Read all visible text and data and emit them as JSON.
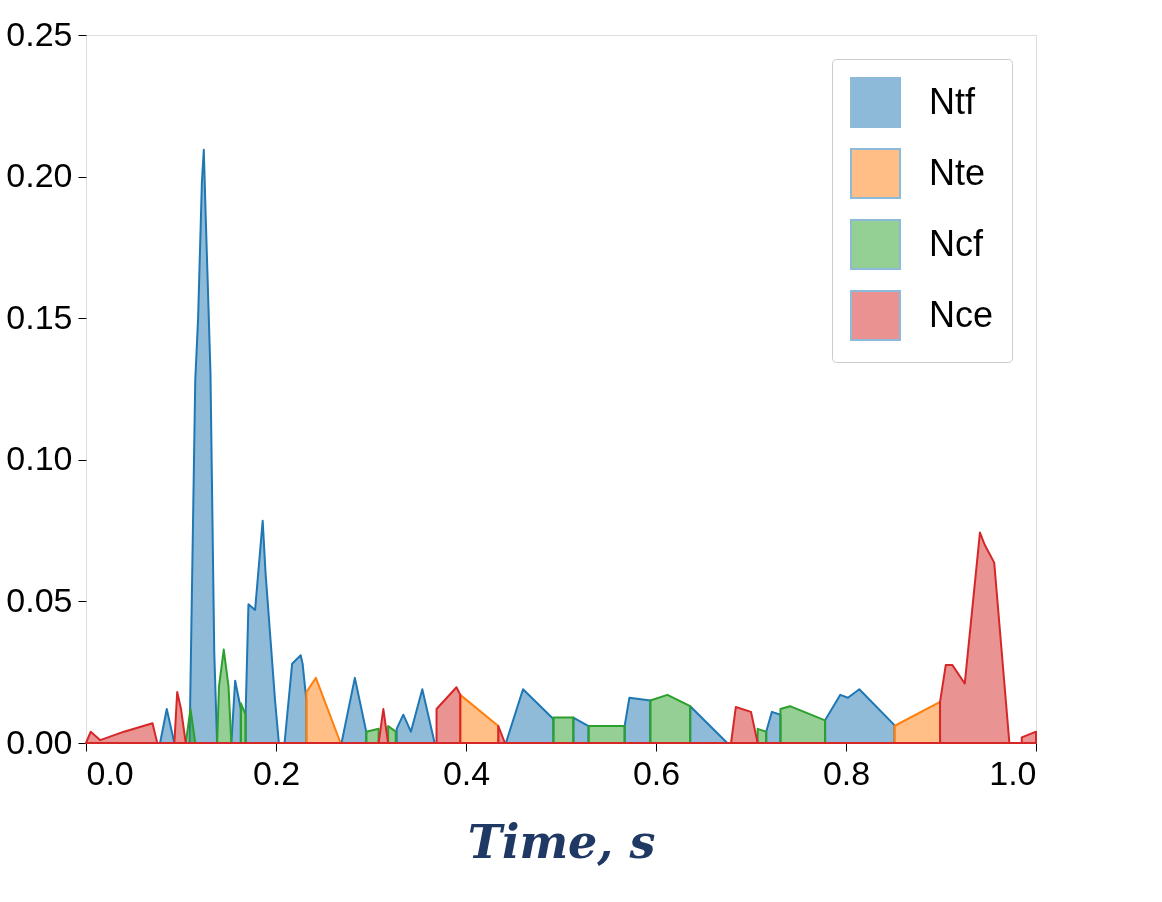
{
  "chart_data": {
    "type": "area",
    "xlabel": "Time, s",
    "xlim": [
      0,
      1
    ],
    "xticks": [
      {
        "value": 0,
        "label": "0.0"
      },
      {
        "value": 0.2,
        "label": "0.2"
      },
      {
        "value": 0.4,
        "label": "0.4"
      },
      {
        "value": 0.6,
        "label": "0.6"
      },
      {
        "value": 0.8,
        "label": "0.8"
      },
      {
        "value": 1,
        "label": "1.0"
      }
    ],
    "ylim": [
      0,
      0.25
    ],
    "yticks": [
      {
        "value": 0,
        "label": "0.00"
      },
      {
        "value": 0.05,
        "label": "0.05"
      },
      {
        "value": 0.1,
        "label": "0.10"
      },
      {
        "value": 0.15,
        "label": "0.15"
      },
      {
        "value": 0.2,
        "label": "0.20"
      },
      {
        "value": 0.25,
        "label": "0.25"
      }
    ],
    "grid": false,
    "legend": "top right",
    "series": [
      {
        "name": "Ntf",
        "color": "#1f77b4",
        "x": [
          0.078,
          0.085,
          0.093,
          0.109,
          0.115,
          0.118,
          0.122,
          0.124,
          0.126,
          0.131,
          0.135,
          0.138,
          0.153,
          0.157,
          0.163,
          0.163,
          0.168,
          0.168,
          0.171,
          0.178,
          0.186,
          0.189,
          0.199,
          0.203,
          0.209,
          0.217,
          0.226,
          0.228,
          0.232,
          0.232,
          0.269,
          0.283,
          0.295,
          0.295,
          0.327,
          0.327,
          0.334,
          0.342,
          0.354,
          0.367,
          0.442,
          0.46,
          0.492,
          0.492,
          0.513,
          0.513,
          0.529,
          0.529,
          0.567,
          0.567,
          0.572,
          0.594,
          0.594,
          0.636,
          0.636,
          0.675,
          0.716,
          0.716,
          0.722,
          0.731,
          0.731,
          0.778,
          0.778,
          0.794,
          0.802,
          0.814,
          0.851,
          0.851
        ],
        "values": [
          0,
          0.012,
          0,
          0,
          0.128,
          0.15,
          0.198,
          0.2095,
          0.186,
          0.131,
          0.032,
          0,
          0,
          0.022,
          0.012,
          0,
          0,
          0.01,
          0.049,
          0.047,
          0.0785,
          0.06,
          0.015,
          0,
          0,
          0.028,
          0.031,
          0.028,
          0.015,
          0,
          0,
          0.023,
          0.004,
          0,
          0,
          0.005,
          0.01,
          0.004,
          0.019,
          0,
          0,
          0.019,
          0.0085,
          0,
          0,
          0.009,
          0.006,
          0,
          0,
          0.006,
          0.016,
          0.015,
          0,
          0,
          0.013,
          0,
          0,
          0.004,
          0.011,
          0.01,
          0,
          0,
          0.008,
          0.017,
          0.016,
          0.019,
          0.0063,
          0
        ]
      },
      {
        "name": "Nte",
        "color": "#ff7f0e",
        "x": [
          0.232,
          0.232,
          0.242,
          0.268,
          0.394,
          0.394,
          0.434,
          0.434,
          0.851,
          0.851,
          0.899,
          0.899
        ],
        "values": [
          0,
          0.018,
          0.023,
          0,
          0,
          0.017,
          0.006,
          0,
          0,
          0.006,
          0.0145,
          0
        ]
      },
      {
        "name": "Ncf",
        "color": "#2ca02c",
        "x": [
          0.105,
          0.11,
          0.115,
          0.138,
          0.14,
          0.145,
          0.15,
          0.153,
          0.163,
          0.163,
          0.168,
          0.168,
          0.295,
          0.295,
          0.308,
          0.308,
          0.318,
          0.318,
          0.326,
          0.326,
          0.492,
          0.492,
          0.513,
          0.513,
          0.529,
          0.529,
          0.567,
          0.567,
          0.594,
          0.594,
          0.612,
          0.636,
          0.636,
          0.707,
          0.707,
          0.716,
          0.716,
          0.731,
          0.731,
          0.741,
          0.778,
          0.778
        ],
        "values": [
          0,
          0.012,
          0,
          0,
          0.02,
          0.033,
          0.02,
          0,
          0,
          0.014,
          0.01,
          0,
          0,
          0.004,
          0.005,
          0,
          0,
          0.006,
          0.004,
          0,
          0,
          0.009,
          0.009,
          0,
          0,
          0.006,
          0.006,
          0,
          0,
          0.015,
          0.017,
          0.013,
          0,
          0,
          0.005,
          0.004,
          0,
          0,
          0.012,
          0.013,
          0.008,
          0
        ]
      },
      {
        "name": "Nce",
        "color": "#d62728",
        "x": [
          0,
          0.005,
          0.015,
          0.04,
          0.07,
          0.075,
          0.093,
          0.096,
          0.1,
          0.105,
          0.308,
          0.313,
          0.318,
          0.369,
          0.369,
          0.39,
          0.394,
          0.394,
          0.434,
          0.434,
          0.441,
          0.679,
          0.684,
          0.7,
          0.707,
          0.899,
          0.899,
          0.905,
          0.912,
          0.925,
          0.941,
          0.946,
          0.956,
          0.972,
          0.985,
          0.985,
          1.0,
          1.0
        ],
        "values": [
          0,
          0.004,
          0.001,
          0.004,
          0.007,
          0,
          0,
          0.018,
          0.012,
          0,
          0,
          0.012,
          0,
          0,
          0.012,
          0.0197,
          0.017,
          0,
          0,
          0.006,
          0,
          0,
          0.0127,
          0.011,
          0,
          0,
          0.0145,
          0.0275,
          0.0275,
          0.021,
          0.0743,
          0.07,
          0.0637,
          0,
          0,
          0.002,
          0.004,
          0
        ]
      }
    ]
  }
}
